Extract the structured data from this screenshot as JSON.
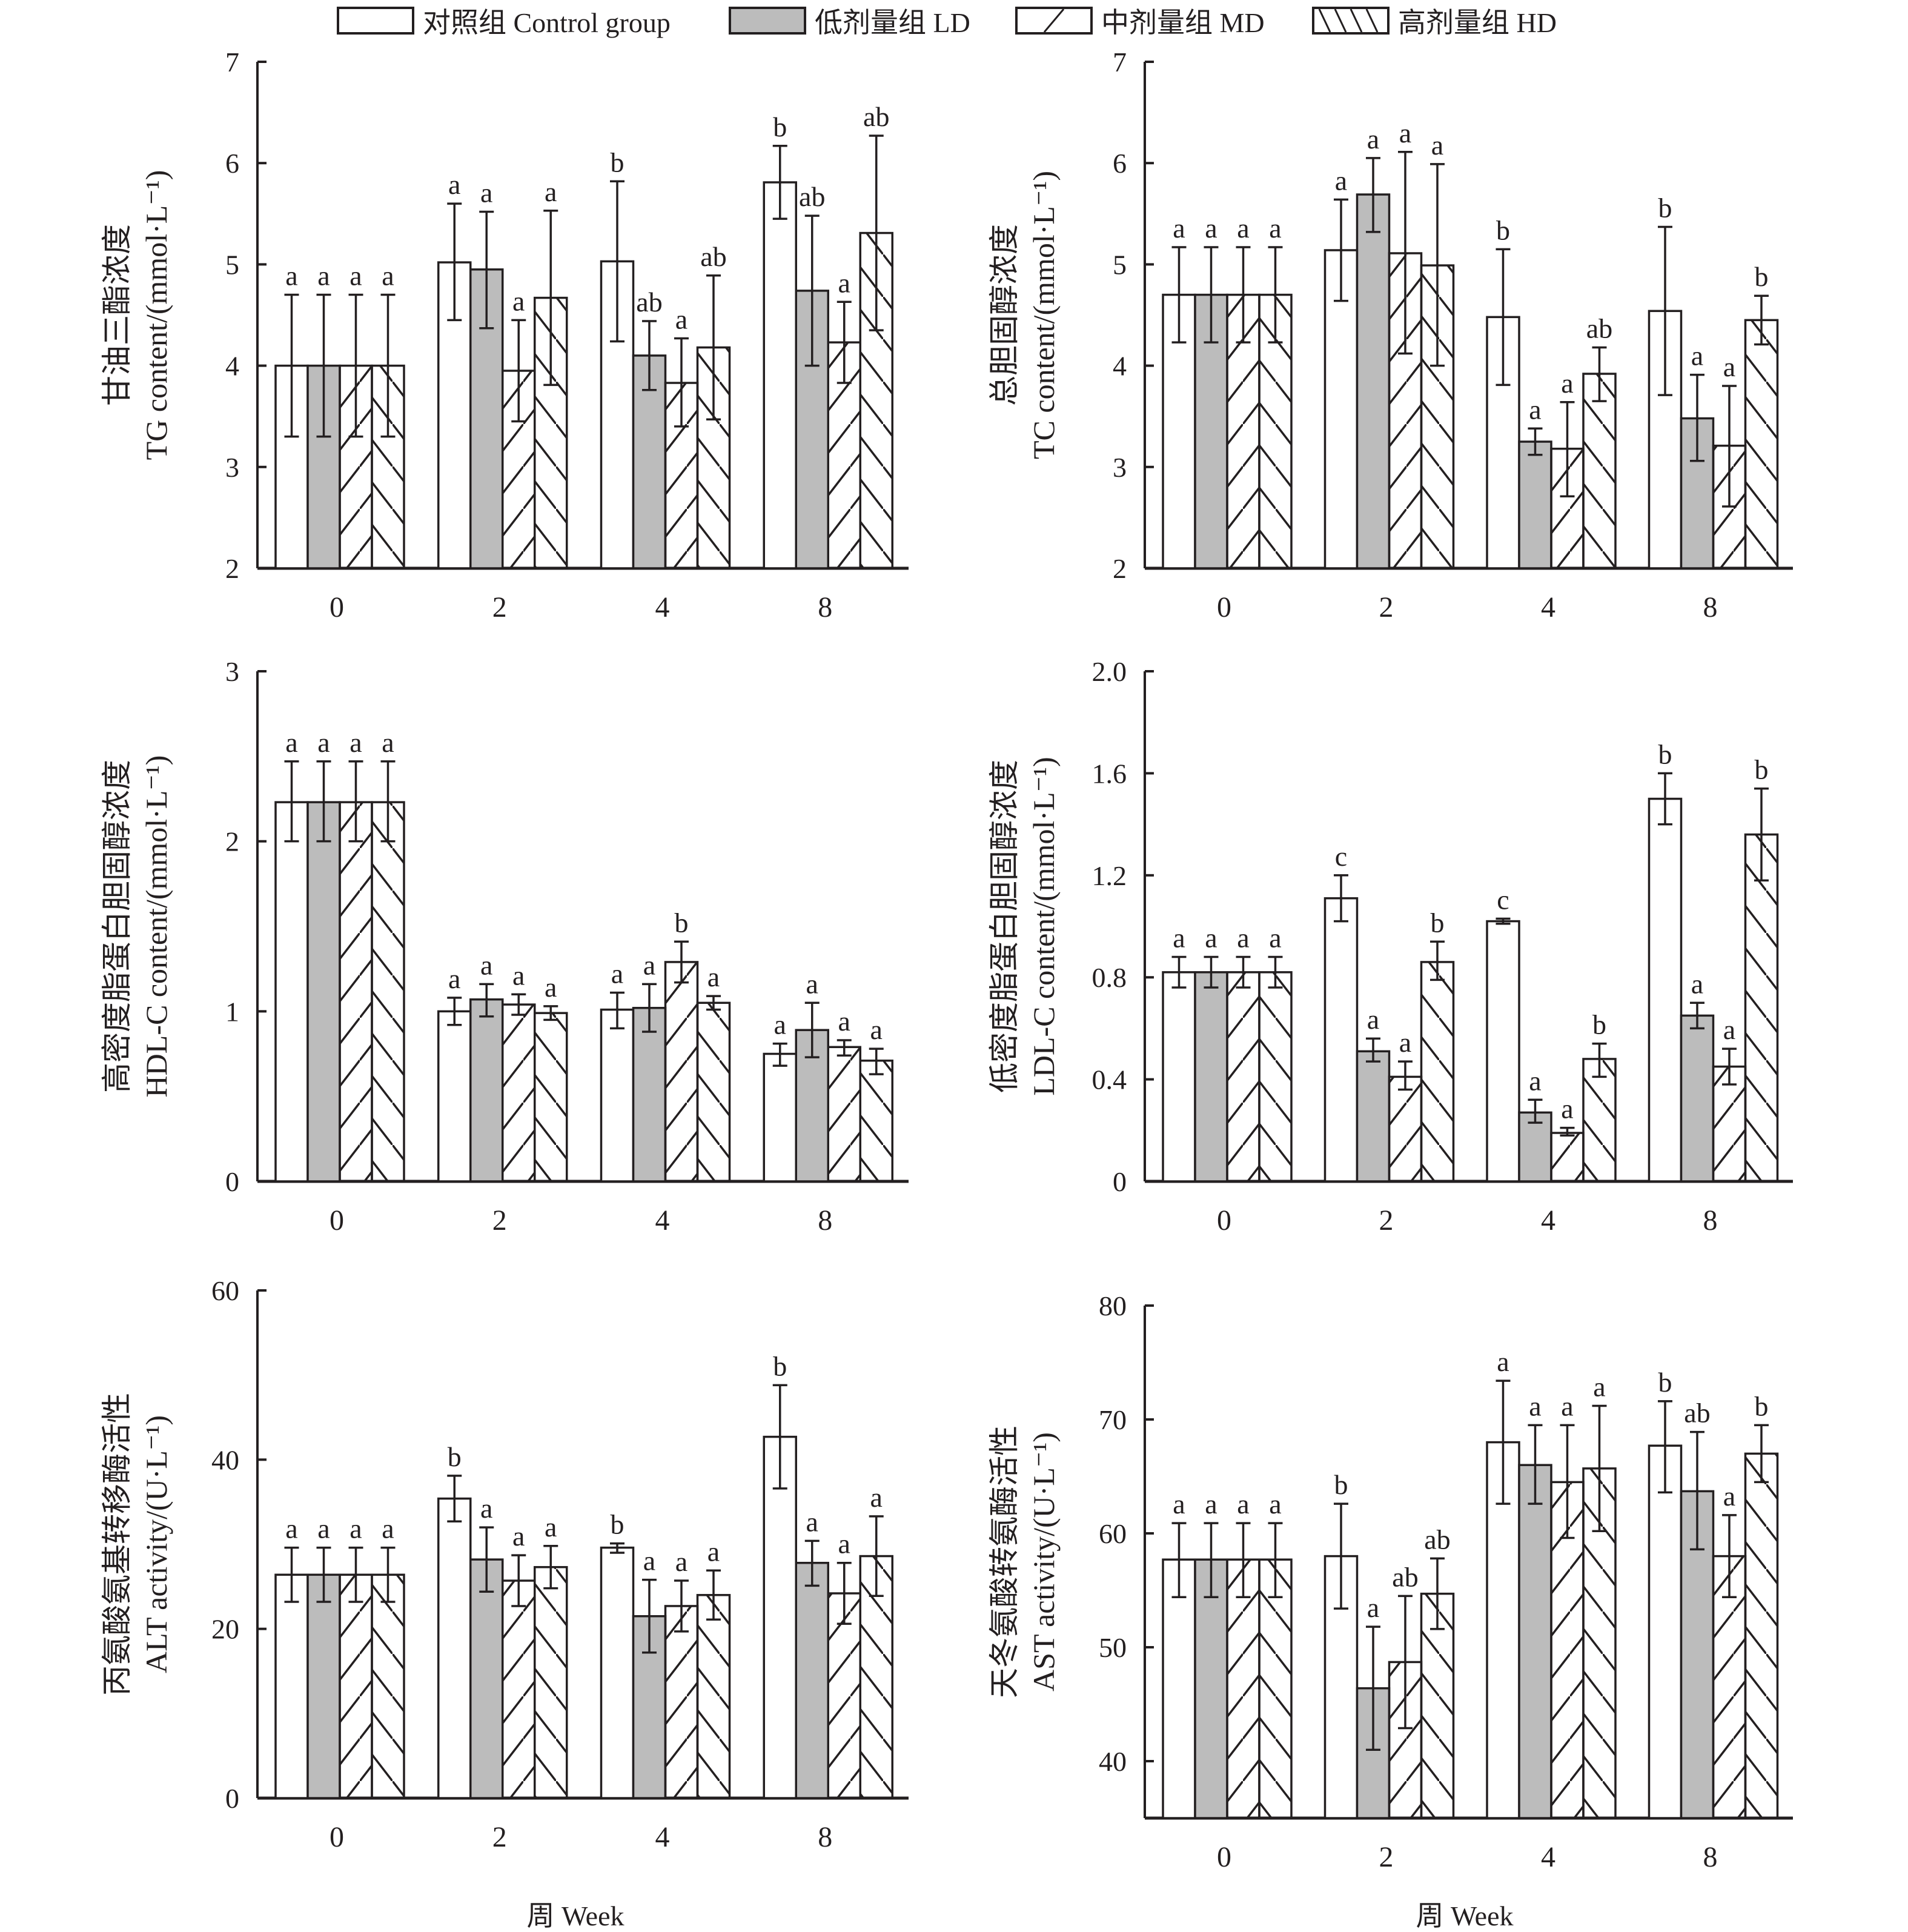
{
  "legend": [
    {
      "label": "对照组 Control group",
      "pattern": "open"
    },
    {
      "label": "低剂量组 LD",
      "pattern": "gray"
    },
    {
      "label": "中剂量组 MD",
      "pattern": "forward-hatch"
    },
    {
      "label": "高剂量组 HD",
      "pattern": "back-hatch"
    }
  ],
  "colors": {
    "ink": "#231f20",
    "gray_fill": "#bcbcbc",
    "background": "#ffffff"
  },
  "x_axis_title": "周 Week",
  "chart_data": [
    {
      "type": "bar",
      "title": "",
      "ylabel_cn": "甘油三酯浓度",
      "ylabel_en": "TG content/(mmol·L⁻¹)",
      "xlabel": "",
      "categories": [
        "0",
        "2",
        "4",
        "8"
      ],
      "ylim": [
        2,
        7
      ],
      "yticks": [
        2,
        3,
        4,
        5,
        6,
        7
      ],
      "ytick_labels": [
        "2",
        "3",
        "4",
        "5",
        "6",
        "7"
      ],
      "series": [
        {
          "name": "对照组 Control group",
          "values": [
            4.0,
            5.02,
            5.03,
            5.81
          ],
          "err_low": [
            3.3,
            4.45,
            4.24,
            5.45
          ],
          "err_high": [
            4.7,
            5.6,
            5.82,
            6.17
          ],
          "letters": [
            "a",
            "a",
            "b",
            "b"
          ]
        },
        {
          "name": "低剂量组 LD",
          "values": [
            4.0,
            4.95,
            4.1,
            4.74
          ],
          "err_low": [
            3.3,
            4.37,
            3.76,
            4.0
          ],
          "err_high": [
            4.7,
            5.52,
            4.44,
            5.48
          ],
          "letters": [
            "a",
            "a",
            "ab",
            "ab"
          ]
        },
        {
          "name": "中剂量组 MD",
          "values": [
            4.0,
            3.95,
            3.83,
            4.23
          ],
          "err_low": [
            3.3,
            3.45,
            3.4,
            3.83
          ],
          "err_high": [
            4.7,
            4.45,
            4.27,
            4.63
          ],
          "letters": [
            "a",
            "a",
            "a",
            "a"
          ]
        },
        {
          "name": "高剂量组 HD",
          "values": [
            4.0,
            4.67,
            4.18,
            5.31
          ],
          "err_low": [
            3.3,
            3.81,
            3.47,
            4.35
          ],
          "err_high": [
            4.7,
            5.53,
            4.89,
            6.27
          ],
          "letters": [
            "a",
            "a",
            "ab",
            "ab"
          ]
        }
      ]
    },
    {
      "type": "bar",
      "title": "",
      "ylabel_cn": "总胆固醇浓度",
      "ylabel_en": "TC content/(mmol·L⁻¹)",
      "xlabel": "",
      "categories": [
        "0",
        "2",
        "4",
        "8"
      ],
      "ylim": [
        2,
        7
      ],
      "yticks": [
        2,
        3,
        4,
        5,
        6,
        7
      ],
      "ytick_labels": [
        "2",
        "3",
        "4",
        "5",
        "6",
        "7"
      ],
      "series": [
        {
          "name": "对照组 Control group",
          "values": [
            4.7,
            5.14,
            4.48,
            4.54
          ],
          "err_low": [
            4.23,
            4.64,
            3.81,
            3.71
          ],
          "err_high": [
            5.17,
            5.64,
            5.15,
            5.37
          ],
          "letters": [
            "a",
            "a",
            "b",
            "b"
          ]
        },
        {
          "name": "低剂量组 LD",
          "values": [
            4.7,
            5.69,
            3.25,
            3.48
          ],
          "err_low": [
            4.23,
            5.32,
            3.12,
            3.06
          ],
          "err_high": [
            5.17,
            6.05,
            3.38,
            3.91
          ],
          "letters": [
            "a",
            "a",
            "a",
            "a"
          ]
        },
        {
          "name": "中剂量组 MD",
          "values": [
            4.7,
            5.11,
            3.18,
            3.21
          ],
          "err_low": [
            4.23,
            4.12,
            2.71,
            2.61
          ],
          "err_high": [
            5.17,
            6.11,
            3.64,
            3.8
          ],
          "letters": [
            "a",
            "a",
            "a",
            "a"
          ]
        },
        {
          "name": "高剂量组 HD",
          "values": [
            4.7,
            4.99,
            3.92,
            4.45
          ],
          "err_low": [
            4.23,
            4.0,
            3.65,
            4.21
          ],
          "err_high": [
            5.17,
            5.99,
            4.18,
            4.69
          ],
          "letters": [
            "a",
            "a",
            "ab",
            "b"
          ]
        }
      ]
    },
    {
      "type": "bar",
      "title": "",
      "ylabel_cn": "高密度脂蛋白胆固醇浓度",
      "ylabel_en": "HDL-C content/(mmol·L⁻¹)",
      "xlabel": "",
      "categories": [
        "0",
        "2",
        "4",
        "8"
      ],
      "ylim": [
        0,
        3
      ],
      "yticks": [
        0,
        1,
        2,
        3
      ],
      "ytick_labels": [
        "0",
        "1",
        "2",
        "3"
      ],
      "series": [
        {
          "name": "对照组 Control group",
          "values": [
            2.23,
            1.0,
            1.01,
            0.75
          ],
          "err_low": [
            2.0,
            0.92,
            0.9,
            0.68
          ],
          "err_high": [
            2.47,
            1.08,
            1.11,
            0.81
          ],
          "letters": [
            "a",
            "a",
            "a",
            "a"
          ]
        },
        {
          "name": "低剂量组 LD",
          "values": [
            2.23,
            1.07,
            1.02,
            0.89
          ],
          "err_low": [
            2.0,
            0.97,
            0.88,
            0.73
          ],
          "err_high": [
            2.47,
            1.16,
            1.16,
            1.05
          ],
          "letters": [
            "a",
            "a",
            "a",
            "a"
          ]
        },
        {
          "name": "中剂量组 MD",
          "values": [
            2.23,
            1.04,
            1.29,
            0.79
          ],
          "err_low": [
            2.0,
            0.98,
            1.17,
            0.74
          ],
          "err_high": [
            2.47,
            1.1,
            1.41,
            0.83
          ],
          "letters": [
            "a",
            "a",
            "b",
            "a"
          ]
        },
        {
          "name": "高剂量组 HD",
          "values": [
            2.23,
            0.99,
            1.05,
            0.71
          ],
          "err_low": [
            2.0,
            0.95,
            1.01,
            0.63
          ],
          "err_high": [
            2.47,
            1.03,
            1.09,
            0.78
          ],
          "letters": [
            "a",
            "a",
            "a",
            "a"
          ]
        }
      ]
    },
    {
      "type": "bar",
      "title": "",
      "ylabel_cn": "低密度脂蛋白胆固醇浓度",
      "ylabel_en": "LDL-C content/(mmol·L⁻¹)",
      "xlabel": "",
      "categories": [
        "0",
        "2",
        "4",
        "8"
      ],
      "ylim": [
        0,
        2.0
      ],
      "yticks": [
        0,
        0.4,
        0.8,
        1.2,
        1.6,
        2.0
      ],
      "ytick_labels": [
        "0",
        "0.4",
        "0.8",
        "1.2",
        "1.6",
        "2.0"
      ],
      "series": [
        {
          "name": "对照组 Control group",
          "values": [
            0.82,
            1.11,
            1.02,
            1.5
          ],
          "err_low": [
            0.76,
            1.02,
            1.01,
            1.4
          ],
          "err_high": [
            0.88,
            1.2,
            1.03,
            1.6
          ],
          "letters": [
            "a",
            "c",
            "c",
            "b"
          ]
        },
        {
          "name": "低剂量组 LD",
          "values": [
            0.82,
            0.51,
            0.27,
            0.65
          ],
          "err_low": [
            0.76,
            0.47,
            0.23,
            0.6
          ],
          "err_high": [
            0.88,
            0.56,
            0.32,
            0.7
          ],
          "letters": [
            "a",
            "a",
            "a",
            "a"
          ]
        },
        {
          "name": "中剂量组 MD",
          "values": [
            0.82,
            0.41,
            0.19,
            0.45
          ],
          "err_low": [
            0.76,
            0.36,
            0.18,
            0.38
          ],
          "err_high": [
            0.88,
            0.47,
            0.21,
            0.52
          ],
          "letters": [
            "a",
            "a",
            "a",
            "a"
          ]
        },
        {
          "name": "高剂量组 HD",
          "values": [
            0.82,
            0.86,
            0.48,
            1.36
          ],
          "err_low": [
            0.76,
            0.79,
            0.41,
            1.18
          ],
          "err_high": [
            0.88,
            0.94,
            0.54,
            1.54
          ],
          "letters": [
            "a",
            "b",
            "b",
            "b"
          ]
        }
      ]
    },
    {
      "type": "bar",
      "title": "",
      "ylabel_cn": "丙氨酸氨基转移酶活性",
      "ylabel_en": "ALT activity/(U·L⁻¹)",
      "xlabel": "周 Week",
      "categories": [
        "0",
        "2",
        "4",
        "8"
      ],
      "ylim": [
        0,
        60
      ],
      "yticks": [
        0,
        20,
        40,
        60
      ],
      "ytick_labels": [
        "0",
        "20",
        "40",
        "60"
      ],
      "series": [
        {
          "name": "对照组 Control group",
          "values": [
            26.4,
            35.4,
            29.6,
            42.7
          ],
          "err_low": [
            23.2,
            32.7,
            29.0,
            36.6
          ],
          "err_high": [
            29.6,
            38.1,
            30.1,
            48.8
          ],
          "letters": [
            "a",
            "b",
            "b",
            "b"
          ]
        },
        {
          "name": "低剂量组 LD",
          "values": [
            26.4,
            28.2,
            21.5,
            27.8
          ],
          "err_low": [
            23.2,
            24.4,
            17.2,
            25.1
          ],
          "err_high": [
            29.6,
            32.0,
            25.8,
            30.4
          ],
          "letters": [
            "a",
            "a",
            "a",
            "a"
          ]
        },
        {
          "name": "中剂量组 MD",
          "values": [
            26.4,
            25.7,
            22.7,
            24.2
          ],
          "err_low": [
            23.2,
            22.7,
            19.7,
            20.6
          ],
          "err_high": [
            29.6,
            28.7,
            25.7,
            27.8
          ],
          "letters": [
            "a",
            "a",
            "a",
            "a"
          ]
        },
        {
          "name": "高剂量组 HD",
          "values": [
            26.4,
            27.3,
            24.0,
            28.6
          ],
          "err_low": [
            23.2,
            24.8,
            21.1,
            23.9
          ],
          "err_high": [
            29.6,
            29.8,
            26.9,
            33.3
          ],
          "letters": [
            "a",
            "a",
            "a",
            "a"
          ]
        }
      ]
    },
    {
      "type": "bar",
      "title": "",
      "ylabel_cn": "天冬氨酸转氨酶活性",
      "ylabel_en": "AST activity/(U·L⁻¹)",
      "xlabel": "周 Week",
      "categories": [
        "0",
        "2",
        "4",
        "8"
      ],
      "ylim": [
        35,
        80
      ],
      "yticks": [
        40,
        50,
        60,
        70,
        80
      ],
      "ytick_labels": [
        "40",
        "50",
        "60",
        "70",
        "80"
      ],
      "series": [
        {
          "name": "对照组 Control group",
          "values": [
            57.7,
            58.0,
            68.0,
            67.7
          ],
          "err_low": [
            54.4,
            53.4,
            62.6,
            63.6
          ],
          "err_high": [
            60.9,
            62.6,
            73.4,
            71.6
          ],
          "letters": [
            "a",
            "b",
            "a",
            "b"
          ]
        },
        {
          "name": "低剂量组 LD",
          "values": [
            57.7,
            46.4,
            66.0,
            63.7
          ],
          "err_low": [
            54.4,
            41.0,
            62.6,
            58.6
          ],
          "err_high": [
            60.9,
            51.8,
            69.5,
            68.9
          ],
          "letters": [
            "a",
            "a",
            "a",
            "ab"
          ]
        },
        {
          "name": "中剂量组 MD",
          "values": [
            57.7,
            48.7,
            64.5,
            58.0
          ],
          "err_low": [
            54.4,
            42.9,
            59.6,
            54.4
          ],
          "err_high": [
            60.9,
            54.5,
            69.5,
            61.6
          ],
          "letters": [
            "a",
            "ab",
            "a",
            "a"
          ]
        },
        {
          "name": "高剂量组 HD",
          "values": [
            57.7,
            54.7,
            65.7,
            67.0
          ],
          "err_low": [
            54.4,
            51.6,
            60.2,
            64.5
          ],
          "err_high": [
            60.9,
            57.8,
            71.2,
            69.5
          ],
          "letters": [
            "a",
            "ab",
            "a",
            "b"
          ]
        }
      ]
    }
  ]
}
